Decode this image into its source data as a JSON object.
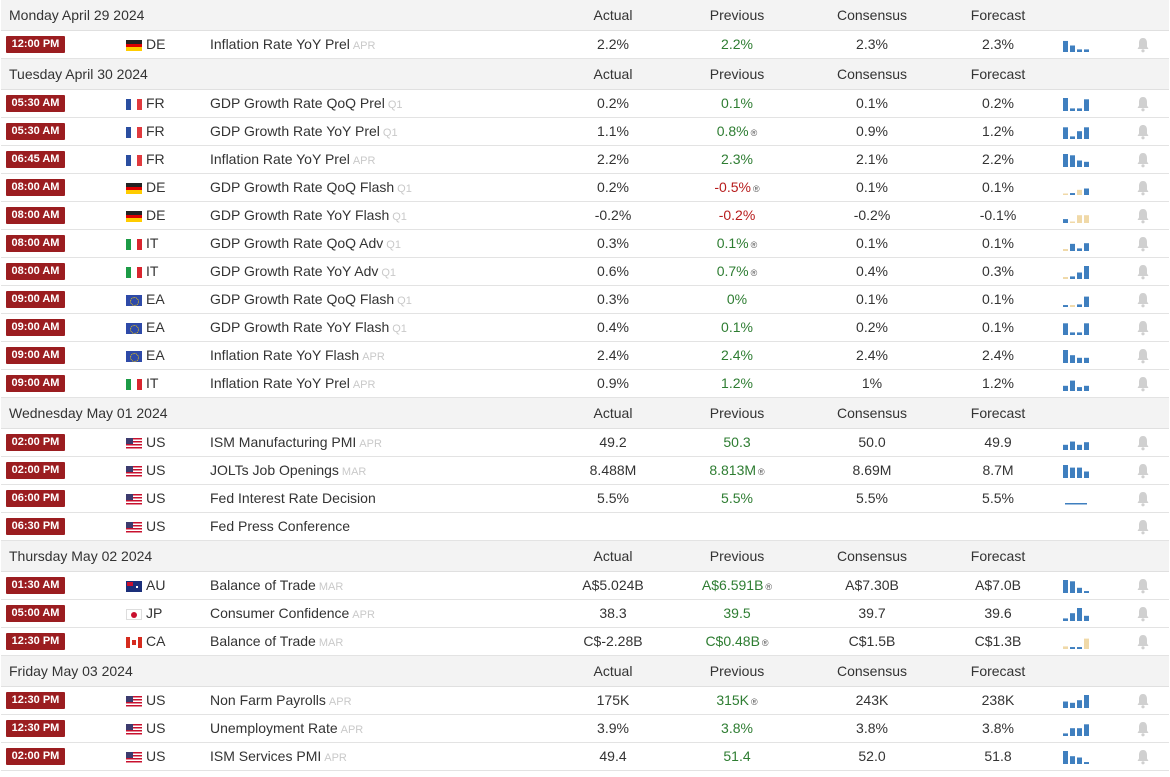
{
  "columns": {
    "actual": "Actual",
    "previous": "Previous",
    "consensus": "Consensus",
    "forecast": "Forecast"
  },
  "days": [
    {
      "date": "Monday April 29 2024",
      "events": [
        {
          "time": "12:00 PM",
          "flag": "de",
          "country": "DE",
          "event": "Inflation Rate YoY Prel",
          "ref": "APR",
          "actual": "2.2%",
          "previous": "2.2%",
          "previous_color": "pos",
          "revised": false,
          "consensus": "2.3%",
          "forecast": "2.3%",
          "spark": [
            {
              "h": 0.85,
              "c": "b"
            },
            {
              "h": 0.5,
              "c": "b"
            },
            {
              "h": 0.2,
              "c": "b"
            },
            {
              "h": 0.2,
              "c": "b"
            }
          ]
        }
      ]
    },
    {
      "date": "Tuesday April 30 2024",
      "events": [
        {
          "time": "05:30 AM",
          "flag": "fr",
          "country": "FR",
          "event": "GDP Growth Rate QoQ Prel",
          "ref": "Q1",
          "actual": "0.2%",
          "previous": "0.1%",
          "previous_color": "pos",
          "revised": false,
          "consensus": "0.1%",
          "forecast": "0.2%",
          "spark": [
            {
              "h": 1.0,
              "c": "b"
            },
            {
              "h": 0.2,
              "c": "b"
            },
            {
              "h": 0.2,
              "c": "b"
            },
            {
              "h": 0.9,
              "c": "b"
            }
          ]
        },
        {
          "time": "05:30 AM",
          "flag": "fr",
          "country": "FR",
          "event": "GDP Growth Rate YoY Prel",
          "ref": "Q1",
          "actual": "1.1%",
          "previous": "0.8%",
          "previous_color": "pos",
          "revised": true,
          "consensus": "0.9%",
          "forecast": "1.2%",
          "spark": [
            {
              "h": 0.9,
              "c": "b"
            },
            {
              "h": 0.2,
              "c": "b"
            },
            {
              "h": 0.6,
              "c": "b"
            },
            {
              "h": 0.9,
              "c": "b"
            }
          ]
        },
        {
          "time": "06:45 AM",
          "flag": "fr",
          "country": "FR",
          "event": "Inflation Rate YoY Prel",
          "ref": "APR",
          "actual": "2.2%",
          "previous": "2.3%",
          "previous_color": "pos",
          "revised": false,
          "consensus": "2.1%",
          "forecast": "2.2%",
          "spark": [
            {
              "h": 1.0,
              "c": "b"
            },
            {
              "h": 0.9,
              "c": "b"
            },
            {
              "h": 0.5,
              "c": "b"
            },
            {
              "h": 0.4,
              "c": "b"
            }
          ]
        },
        {
          "time": "08:00 AM",
          "flag": "de",
          "country": "DE",
          "event": "GDP Growth Rate QoQ Flash",
          "ref": "Q1",
          "actual": "0.2%",
          "previous": "-0.5%",
          "previous_color": "neg",
          "revised": true,
          "consensus": "0.1%",
          "forecast": "0.1%",
          "spark": [
            {
              "h": 0.1,
              "c": "t"
            },
            {
              "h": 0.15,
              "c": "b"
            },
            {
              "h": 0.4,
              "c": "t"
            },
            {
              "h": 0.5,
              "c": "b"
            }
          ]
        },
        {
          "time": "08:00 AM",
          "flag": "de",
          "country": "DE",
          "event": "GDP Growth Rate YoY Flash",
          "ref": "Q1",
          "actual": "-0.2%",
          "previous": "-0.2%",
          "previous_color": "neg",
          "revised": false,
          "consensus": "-0.2%",
          "forecast": "-0.1%",
          "spark": [
            {
              "h": 0.3,
              "c": "b"
            },
            {
              "h": 0,
              "c": "t"
            },
            {
              "h": 0.6,
              "c": "t"
            },
            {
              "h": 0.6,
              "c": "t"
            }
          ]
        },
        {
          "time": "08:00 AM",
          "flag": "it",
          "country": "IT",
          "event": "GDP Growth Rate QoQ Adv",
          "ref": "Q1",
          "actual": "0.3%",
          "previous": "0.1%",
          "previous_color": "pos",
          "revised": true,
          "consensus": "0.1%",
          "forecast": "0.1%",
          "spark": [
            {
              "h": 0.15,
              "c": "t"
            },
            {
              "h": 0.55,
              "c": "b"
            },
            {
              "h": 0.2,
              "c": "b"
            },
            {
              "h": 0.6,
              "c": "b"
            }
          ]
        },
        {
          "time": "08:00 AM",
          "flag": "it",
          "country": "IT",
          "event": "GDP Growth Rate YoY Adv",
          "ref": "Q1",
          "actual": "0.6%",
          "previous": "0.7%",
          "previous_color": "pos",
          "revised": true,
          "consensus": "0.4%",
          "forecast": "0.3%",
          "spark": [
            {
              "h": 0.15,
              "c": "t"
            },
            {
              "h": 0.2,
              "c": "b"
            },
            {
              "h": 0.5,
              "c": "b"
            },
            {
              "h": 1.0,
              "c": "b"
            }
          ]
        },
        {
          "time": "09:00 AM",
          "flag": "eu",
          "country": "EA",
          "event": "GDP Growth Rate QoQ Flash",
          "ref": "Q1",
          "actual": "0.3%",
          "previous": "0%",
          "previous_color": "pos",
          "revised": false,
          "consensus": "0.1%",
          "forecast": "0.1%",
          "spark": [
            {
              "h": 0.15,
              "c": "b"
            },
            {
              "h": 0.15,
              "c": "t"
            },
            {
              "h": 0.2,
              "c": "b"
            },
            {
              "h": 0.8,
              "c": "b"
            }
          ]
        },
        {
          "time": "09:00 AM",
          "flag": "eu",
          "country": "EA",
          "event": "GDP Growth Rate YoY Flash",
          "ref": "Q1",
          "actual": "0.4%",
          "previous": "0.1%",
          "previous_color": "pos",
          "revised": false,
          "consensus": "0.2%",
          "forecast": "0.1%",
          "spark": [
            {
              "h": 0.9,
              "c": "b"
            },
            {
              "h": 0.2,
              "c": "b"
            },
            {
              "h": 0.2,
              "c": "b"
            },
            {
              "h": 0.9,
              "c": "b"
            }
          ]
        },
        {
          "time": "09:00 AM",
          "flag": "eu",
          "country": "EA",
          "event": "Inflation Rate YoY Flash",
          "ref": "APR",
          "actual": "2.4%",
          "previous": "2.4%",
          "previous_color": "pos",
          "revised": false,
          "consensus": "2.4%",
          "forecast": "2.4%",
          "spark": [
            {
              "h": 1.0,
              "c": "b"
            },
            {
              "h": 0.6,
              "c": "b"
            },
            {
              "h": 0.4,
              "c": "b"
            },
            {
              "h": 0.4,
              "c": "b"
            }
          ]
        },
        {
          "time": "09:00 AM",
          "flag": "it",
          "country": "IT",
          "event": "Inflation Rate YoY Prel",
          "ref": "APR",
          "actual": "0.9%",
          "previous": "1.2%",
          "previous_color": "pos",
          "revised": false,
          "consensus": "1%",
          "forecast": "1.2%",
          "spark": [
            {
              "h": 0.4,
              "c": "b"
            },
            {
              "h": 0.8,
              "c": "b"
            },
            {
              "h": 0.3,
              "c": "b"
            },
            {
              "h": 0.4,
              "c": "b"
            }
          ]
        }
      ]
    },
    {
      "date": "Wednesday May 01 2024",
      "events": [
        {
          "time": "02:00 PM",
          "flag": "us",
          "country": "US",
          "event": "ISM Manufacturing PMI",
          "ref": "APR",
          "actual": "49.2",
          "previous": "50.3",
          "previous_color": "pos",
          "revised": false,
          "consensus": "50.0",
          "forecast": "49.9",
          "spark": [
            {
              "h": 0.4,
              "c": "b"
            },
            {
              "h": 0.65,
              "c": "b"
            },
            {
              "h": 0.4,
              "c": "b"
            },
            {
              "h": 0.6,
              "c": "b"
            }
          ]
        },
        {
          "time": "02:00 PM",
          "flag": "us",
          "country": "US",
          "event": "JOLTs Job Openings",
          "ref": "MAR",
          "actual": "8.488M",
          "previous": "8.813M",
          "previous_color": "pos",
          "revised": true,
          "consensus": "8.69M",
          "forecast": "8.7M",
          "spark": [
            {
              "h": 1.0,
              "c": "b"
            },
            {
              "h": 0.8,
              "c": "b"
            },
            {
              "h": 0.8,
              "c": "b"
            },
            {
              "h": 0.5,
              "c": "b"
            }
          ]
        },
        {
          "time": "06:00 PM",
          "flag": "us",
          "country": "US",
          "event": "Fed Interest Rate Decision",
          "ref": "",
          "actual": "5.5%",
          "previous": "5.5%",
          "previous_color": "pos",
          "revised": false,
          "consensus": "5.5%",
          "forecast": "5.5%",
          "spark": [
            {
              "h": 0.12,
              "c": "b"
            },
            {
              "h": 0.12,
              "c": "b"
            },
            {
              "h": 0.12,
              "c": "b"
            },
            {
              "h": 0.12,
              "c": "b"
            }
          ],
          "flat_spark": true
        },
        {
          "time": "06:30 PM",
          "flag": "us",
          "country": "US",
          "event": "Fed Press Conference",
          "ref": "",
          "actual": "",
          "previous": "",
          "previous_color": "pos",
          "revised": false,
          "consensus": "",
          "forecast": "",
          "spark": []
        }
      ]
    },
    {
      "date": "Thursday May 02 2024",
      "events": [
        {
          "time": "01:30 AM",
          "flag": "au",
          "country": "AU",
          "event": "Balance of Trade",
          "ref": "MAR",
          "actual": "A$5.024B",
          "previous": "A$6.591B",
          "previous_color": "pos",
          "revised": true,
          "consensus": "A$7.30B",
          "forecast": "A$7.0B",
          "spark": [
            {
              "h": 1.0,
              "c": "b"
            },
            {
              "h": 0.9,
              "c": "b"
            },
            {
              "h": 0.4,
              "c": "b"
            },
            {
              "h": 0.15,
              "c": "b"
            }
          ]
        },
        {
          "time": "05:00 AM",
          "flag": "jp",
          "country": "JP",
          "event": "Consumer Confidence",
          "ref": "APR",
          "actual": "38.3",
          "previous": "39.5",
          "previous_color": "pos",
          "revised": false,
          "consensus": "39.7",
          "forecast": "39.6",
          "spark": [
            {
              "h": 0.2,
              "c": "b"
            },
            {
              "h": 0.6,
              "c": "b"
            },
            {
              "h": 1.0,
              "c": "b"
            },
            {
              "h": 0.4,
              "c": "b"
            }
          ]
        },
        {
          "time": "12:30 PM",
          "flag": "ca",
          "country": "CA",
          "event": "Balance of Trade",
          "ref": "MAR",
          "actual": "C$-2.28B",
          "previous": "C$0.48B",
          "previous_color": "pos",
          "revised": true,
          "consensus": "C$1.5B",
          "forecast": "C$1.3B",
          "spark": [
            {
              "h": 0.2,
              "c": "t"
            },
            {
              "h": 0.15,
              "c": "b"
            },
            {
              "h": 0.15,
              "c": "b"
            },
            {
              "h": 0.8,
              "c": "t"
            }
          ]
        }
      ]
    },
    {
      "date": "Friday May 03 2024",
      "events": [
        {
          "time": "12:30 PM",
          "flag": "us",
          "country": "US",
          "event": "Non Farm Payrolls",
          "ref": "APR",
          "actual": "175K",
          "previous": "315K",
          "previous_color": "pos",
          "revised": true,
          "consensus": "243K",
          "forecast": "238K",
          "spark": [
            {
              "h": 0.5,
              "c": "b"
            },
            {
              "h": 0.4,
              "c": "b"
            },
            {
              "h": 0.6,
              "c": "b"
            },
            {
              "h": 1.0,
              "c": "b"
            }
          ]
        },
        {
          "time": "12:30 PM",
          "flag": "us",
          "country": "US",
          "event": "Unemployment Rate",
          "ref": "APR",
          "actual": "3.9%",
          "previous": "3.8%",
          "previous_color": "pos",
          "revised": false,
          "consensus": "3.8%",
          "forecast": "3.8%",
          "spark": [
            {
              "h": 0.2,
              "c": "b"
            },
            {
              "h": 0.6,
              "c": "b"
            },
            {
              "h": 0.6,
              "c": "b"
            },
            {
              "h": 0.9,
              "c": "b"
            }
          ]
        },
        {
          "time": "02:00 PM",
          "flag": "us",
          "country": "US",
          "event": "ISM Services PMI",
          "ref": "APR",
          "actual": "49.4",
          "previous": "51.4",
          "previous_color": "pos",
          "revised": false,
          "consensus": "52.0",
          "forecast": "51.8",
          "spark": [
            {
              "h": 1.0,
              "c": "b"
            },
            {
              "h": 0.6,
              "c": "b"
            },
            {
              "h": 0.5,
              "c": "b"
            },
            {
              "h": 0.15,
              "c": "b"
            }
          ]
        }
      ]
    }
  ],
  "colors": {
    "time_badge": "#9b1d20",
    "positive": "#2e7d32",
    "negative": "#b71c1c",
    "spark_blue": "#3f7fbf",
    "spark_tan": "#f0d9a8",
    "header_bg": "#f3f3f3",
    "bell": "#d0d0d0"
  },
  "icons": {
    "revised": "revision-marker-icon",
    "bell": "bell-icon",
    "spark": "sparkline-chart-icon"
  }
}
